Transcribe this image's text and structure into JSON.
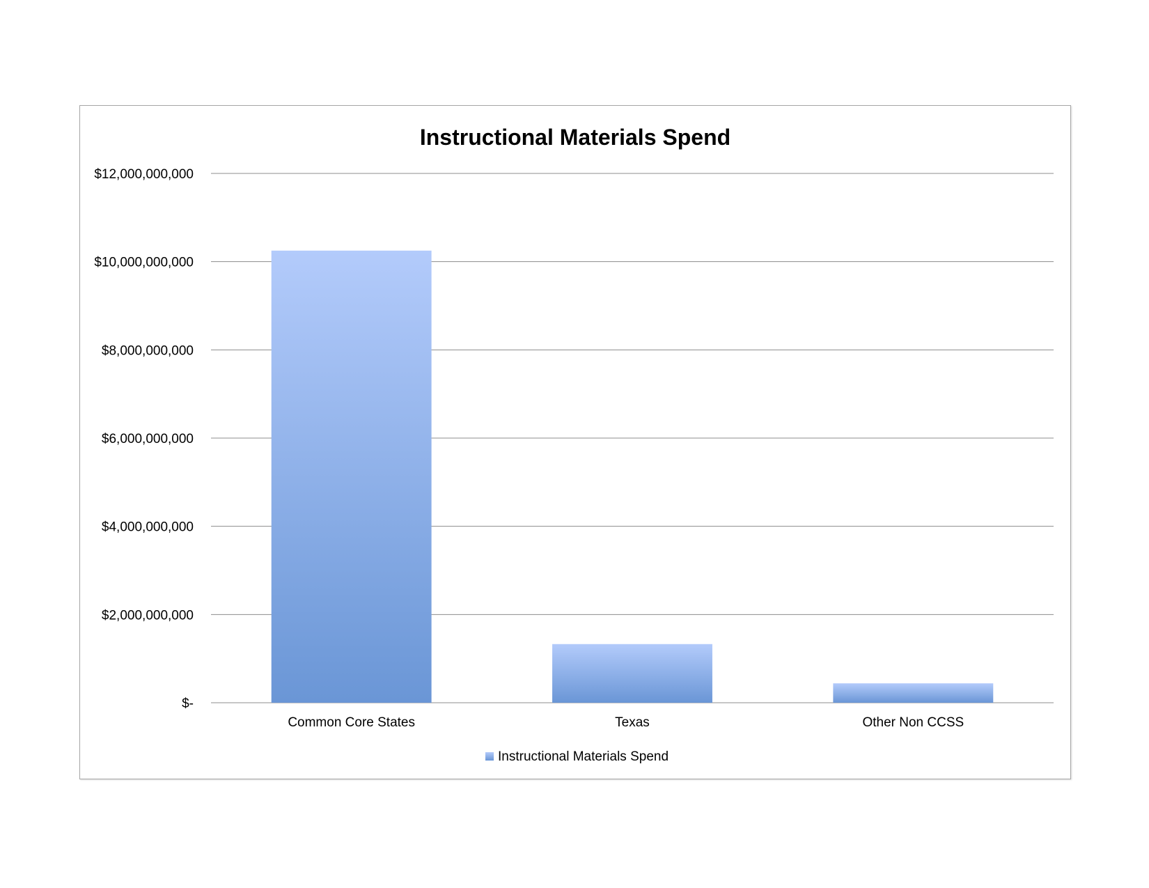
{
  "chart_data": {
    "type": "bar",
    "title": "Instructional Materials Spend",
    "categories": [
      "Common Core States",
      "Texas",
      "Other Non CCSS"
    ],
    "series": [
      {
        "name": "Instructional Materials Spend",
        "values": [
          10250000000,
          1330000000,
          440000000
        ]
      }
    ],
    "ylim": [
      0,
      12000000000
    ],
    "ytick_values": [
      0,
      2000000000,
      4000000000,
      6000000000,
      8000000000,
      10000000000,
      12000000000
    ],
    "ytick_labels": [
      "$-",
      "$2,000,000,000",
      "$4,000,000,000",
      "$6,000,000,000",
      "$8,000,000,000",
      "$10,000,000,000",
      "$12,000,000,000"
    ],
    "grid": true,
    "legend_position": "bottom",
    "colors": {
      "bar_top": "#b3cbfb",
      "bar_bottom": "#6a96d6",
      "gridline": "#8c8c8c"
    }
  }
}
